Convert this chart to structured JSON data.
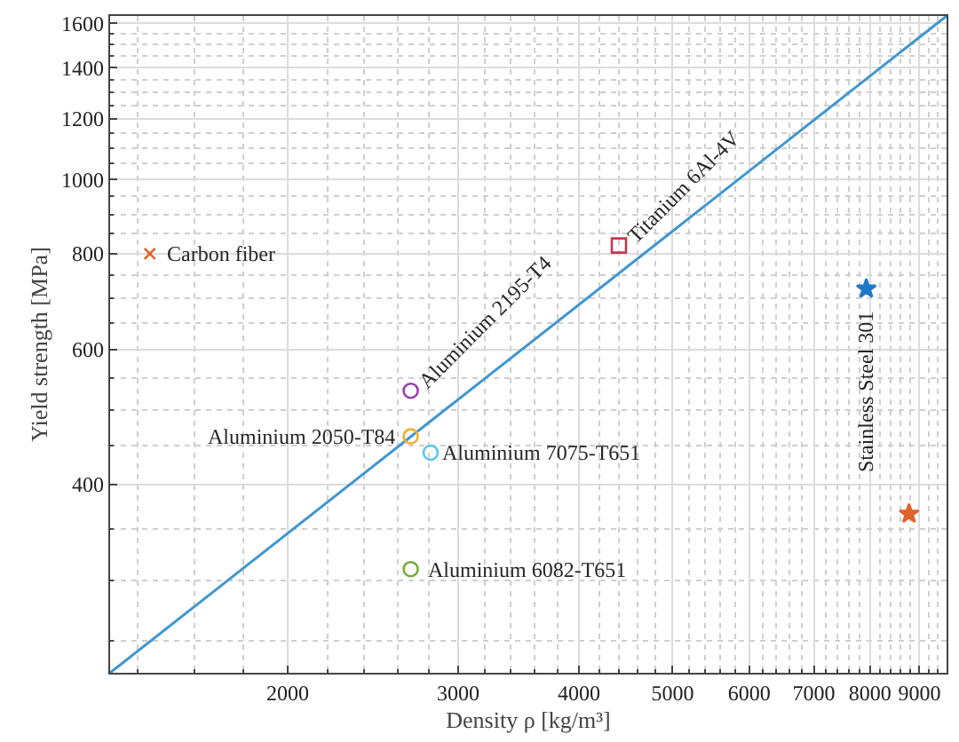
{
  "chart_data": {
    "type": "scatter",
    "xlabel": "Density ρ [kg/m³]",
    "ylabel": "Yield strength [MPa]",
    "log": "xy",
    "grid": true,
    "legend": false,
    "xlim": [
      1310,
      9600
    ],
    "ylim": [
      227,
      1635
    ],
    "xticks": [
      2000,
      3000,
      4000,
      5000,
      6000,
      7000,
      8000,
      9000
    ],
    "yticks": [
      400,
      600,
      800,
      1000,
      1200,
      1400,
      1600
    ],
    "series": [
      {
        "type": "line",
        "color": "#3f96d0",
        "x": [
          1310,
          9600
        ],
        "values": [
          227,
          1635
        ],
        "marker": "none",
        "line_style": "solid"
      },
      {
        "name": "Carbon fiber",
        "color": "#e0622c",
        "x": [
          1440
        ],
        "values": [
          800
        ],
        "marker": "cross"
      },
      {
        "name": "Titanium 6Al-4V",
        "color": "#c0394f",
        "x": [
          4400
        ],
        "values": [
          820
        ],
        "marker": "square"
      },
      {
        "name": "Aluminium 2195-T4",
        "color": "#9b40b0",
        "x": [
          2680
        ],
        "values": [
          530
        ],
        "marker": "circle"
      },
      {
        "name": "Aluminium 2050-T84",
        "color": "#f0b030",
        "x": [
          2680
        ],
        "values": [
          462
        ],
        "marker": "circle"
      },
      {
        "name": "Aluminium 7075-T651",
        "color": "#5bc8f0",
        "x": [
          2810
        ],
        "values": [
          440
        ],
        "marker": "circle"
      },
      {
        "name": "Aluminium 6082-T651",
        "color": "#7aab3a",
        "x": [
          2680
        ],
        "values": [
          310
        ],
        "marker": "circle"
      },
      {
        "name": "Stainless Steel 301",
        "color": "#1f78c8",
        "x": [
          7930
        ],
        "values": [
          720
        ],
        "marker": "star"
      },
      {
        "color": "#e0622c",
        "x": [
          8780
        ],
        "values": [
          366
        ],
        "marker": "star"
      }
    ]
  }
}
